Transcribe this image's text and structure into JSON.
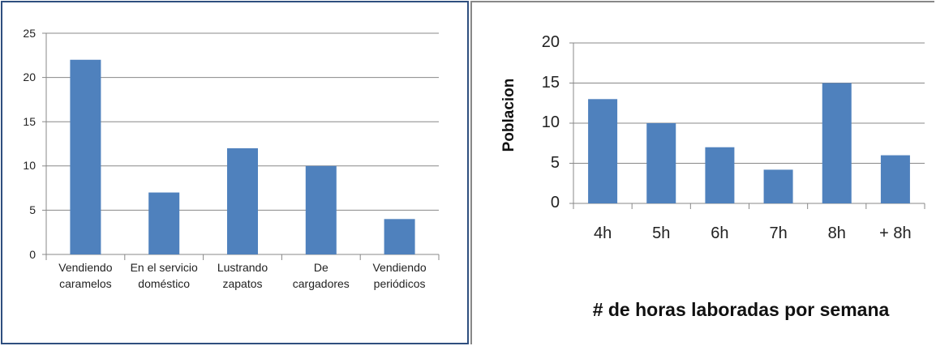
{
  "chart_data": [
    {
      "type": "bar",
      "categories": [
        "Vendiendo\ncaramelos",
        "En el servicio\ndoméstico",
        "Lustrando\nzapatos",
        "De\ncargadores",
        "Vendiendo\nperiódicos"
      ],
      "values": [
        22,
        7,
        12,
        10,
        4
      ],
      "color": "#4f81bd",
      "ylim": [
        0,
        25
      ],
      "yticks": [
        0,
        5,
        10,
        15,
        20,
        25
      ],
      "grid": true
    },
    {
      "type": "bar",
      "categories": [
        "4h",
        "5h",
        "6h",
        "7h",
        "8h",
        "+ 8h"
      ],
      "values": [
        13,
        10,
        7,
        4.2,
        15,
        6
      ],
      "color": "#4f81bd",
      "ylim": [
        0,
        20
      ],
      "yticks": [
        0,
        5,
        10,
        15,
        20
      ],
      "grid": true,
      "xlabel": "# de horas laboradas por semana",
      "ylabel": "Poblacion"
    }
  ]
}
